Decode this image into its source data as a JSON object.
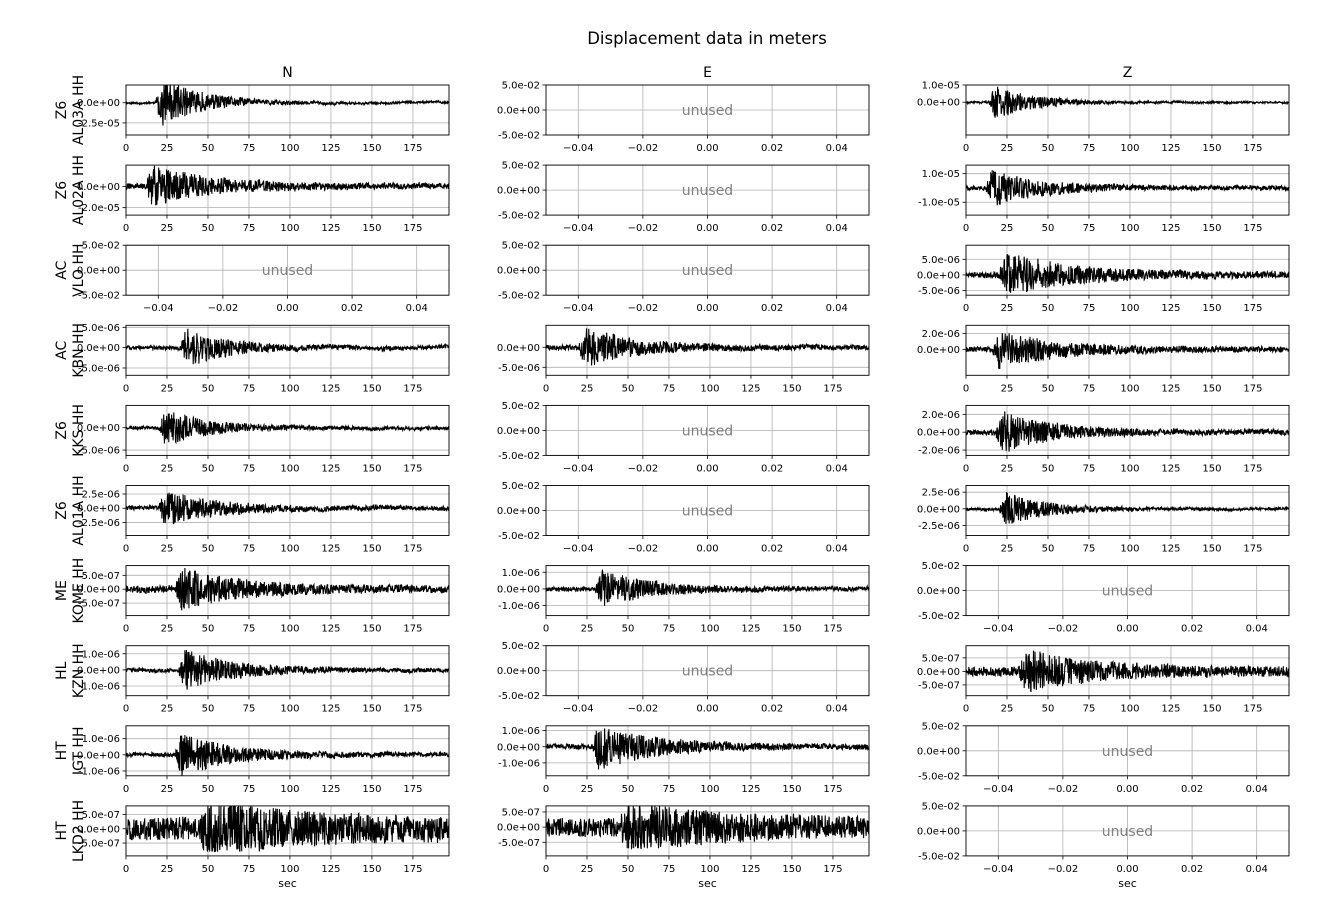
{
  "title": "Displacement data in meters",
  "x_label": "sec",
  "columns": [
    "N",
    "E",
    "Z"
  ],
  "unused_label": "unused",
  "colors": {
    "trace": "#000000",
    "grid": "#b0b0b0",
    "unused_text": "#808080",
    "frame": "#000000"
  },
  "chart_data": {
    "type": "line",
    "title": "Displacement data in meters",
    "xlabel": "sec",
    "grid": true,
    "time_ticks": [
      "0",
      "25",
      "50",
      "75",
      "100",
      "125",
      "150",
      "175"
    ],
    "time_xlim": [
      0,
      197
    ],
    "unused_ticks": [
      "−0.04",
      "−0.02",
      "0.00",
      "0.02",
      "0.04"
    ],
    "unused_yticks": [
      "5.0e-02",
      "0.0e+00",
      "-5.0e-02"
    ],
    "unused_xlim": [
      -0.05,
      0.05
    ],
    "stations": [
      {
        "network": "Z6",
        "station": "AL03A",
        "channel": "HH",
        "label": "Z6\nAL03A HH",
        "label_line1": "Z6",
        "label_line2": "AL03A HH",
        "N": {
          "used": true,
          "ylim": [
            -4e-05,
            2.2e-05
          ],
          "yticks": [
            "0.0e+00",
            "-2.5e-05"
          ],
          "arrival": 18,
          "peak": 3.8e-05,
          "noise": 0.03,
          "decay": 25
        },
        "E": {
          "used": false
        },
        "Z": {
          "used": true,
          "ylim": [
            -1.9e-05,
            1e-05
          ],
          "yticks": [
            "1.0e-05",
            "0.0e+00"
          ],
          "arrival": 14,
          "peak": 1.3e-05,
          "noise": 0.04,
          "decay": 22
        }
      },
      {
        "network": "Z6",
        "station": "AL02A",
        "channel": "HH",
        "label_line1": "Z6",
        "label_line2": "AL02A HH",
        "N": {
          "used": true,
          "ylim": [
            -2.7e-05,
            2e-05
          ],
          "yticks": [
            "0.0e+00",
            "-2.0e-05"
          ],
          "arrival": 12,
          "peak": 2.2e-05,
          "noise": 0.12,
          "decay": 35
        },
        "E": {
          "used": false
        },
        "Z": {
          "used": true,
          "ylim": [
            -1.9e-05,
            1.6e-05
          ],
          "yticks": [
            "1.0e-05",
            "-1.0e-05"
          ],
          "arrival": 12,
          "peak": 1.5e-05,
          "noise": 0.1,
          "decay": 30
        }
      },
      {
        "network": "AC",
        "station": "VLO",
        "channel": "HH",
        "label_line1": "AC",
        "label_line2": "VLO HH",
        "N": {
          "used": false
        },
        "E": {
          "used": false
        },
        "Z": {
          "used": true,
          "ylim": [
            -6.5e-06,
            9.5e-06
          ],
          "yticks": [
            "5.0e-06",
            "0.0e+00",
            "-5.0e-06"
          ],
          "arrival": 20,
          "peak": 8e-06,
          "noise": 0.12,
          "decay": 40
        }
      },
      {
        "network": "AC",
        "station": "KBN",
        "channel": "HH",
        "label_line1": "AC",
        "label_line2": "KBN HH",
        "N": {
          "used": true,
          "ylim": [
            -6.8e-06,
            5.5e-06
          ],
          "yticks": [
            "5.0e-06",
            "0.0e+00",
            "-5.0e-06"
          ],
          "arrival": 33,
          "peak": 6e-06,
          "noise": 0.08,
          "decay": 25
        },
        "E": {
          "used": true,
          "ylim": [
            -7e-06,
            5.5e-06
          ],
          "yticks": [
            "0.0e+00",
            "-5.0e-06"
          ],
          "arrival": 20,
          "peak": 6e-06,
          "noise": 0.1,
          "decay": 30
        },
        "Z": {
          "used": true,
          "ylim": [
            -3.2e-06,
            3e-06
          ],
          "yticks": [
            "2.0e-06",
            "0.0e+00"
          ],
          "arrival": 16,
          "peak": 2.7e-06,
          "noise": 0.12,
          "decay": 35
        }
      },
      {
        "network": "Z6",
        "station": "KKS",
        "channel": "HH",
        "label_line1": "Z6",
        "label_line2": "KKS HH",
        "N": {
          "used": true,
          "ylim": [
            -6.2e-06,
            5e-06
          ],
          "yticks": [
            "0.0e+00",
            "-5.0e-06"
          ],
          "arrival": 20,
          "peak": 5e-06,
          "noise": 0.08,
          "decay": 25
        },
        "E": {
          "used": false
        },
        "Z": {
          "used": true,
          "ylim": [
            -2.6e-06,
            3e-06
          ],
          "yticks": [
            "2.0e-06",
            "0.0e+00",
            "-2.0e-06"
          ],
          "arrival": 18,
          "peak": 2.8e-06,
          "noise": 0.1,
          "decay": 30
        }
      },
      {
        "network": "Z6",
        "station": "AL01A",
        "channel": "HH",
        "label_line1": "Z6",
        "label_line2": "AL01A HH",
        "N": {
          "used": true,
          "ylim": [
            -4.8e-06,
            4e-06
          ],
          "yticks": [
            "2.5e-06",
            "0.0e+00",
            "-2.5e-06"
          ],
          "arrival": 20,
          "peak": 3.8e-06,
          "noise": 0.1,
          "decay": 30
        },
        "E": {
          "used": false
        },
        "Z": {
          "used": true,
          "ylim": [
            -4e-06,
            3.5e-06
          ],
          "yticks": [
            "2.5e-06",
            "0.0e+00",
            "-2.5e-06"
          ],
          "arrival": 20,
          "peak": 3.2e-06,
          "noise": 0.06,
          "decay": 25
        }
      },
      {
        "network": "ME",
        "station": "KOME",
        "channel": "HH",
        "label_line1": "ME",
        "label_line2": "KOME HH",
        "N": {
          "used": true,
          "ylim": [
            -9.5e-07,
            8.5e-07
          ],
          "yticks": [
            "5.0e-07",
            "0.0e+00",
            "-5.0e-07"
          ],
          "arrival": 30,
          "peak": 8.5e-07,
          "noise": 0.15,
          "decay": 35
        },
        "E": {
          "used": true,
          "ylim": [
            -1.6e-06,
            1.4e-06
          ],
          "yticks": [
            "1.0e-06",
            "0.0e+00",
            "-1.0e-06"
          ],
          "arrival": 30,
          "peak": 1.3e-06,
          "noise": 0.1,
          "decay": 30
        },
        "Z": {
          "used": false
        }
      },
      {
        "network": "HL",
        "station": "KZN",
        "channel": "HH",
        "label_line1": "HL",
        "label_line2": "KZN HH",
        "N": {
          "used": true,
          "ylim": [
            -1.6e-06,
            1.5e-06
          ],
          "yticks": [
            "1.0e-06",
            "0.0e+00",
            "-1.0e-06"
          ],
          "arrival": 32,
          "peak": 1.5e-06,
          "noise": 0.08,
          "decay": 30
        },
        "E": {
          "used": false
        },
        "Z": {
          "used": true,
          "ylim": [
            -9e-07,
            9.5e-07
          ],
          "yticks": [
            "5.0e-07",
            "0.0e+00",
            "-5.0e-07"
          ],
          "arrival": 32,
          "peak": 8.5e-07,
          "noise": 0.2,
          "decay": 40
        }
      },
      {
        "network": "HT",
        "station": "IGT",
        "channel": "HH",
        "label_line1": "HT",
        "label_line2": "IGT HH",
        "N": {
          "used": true,
          "ylim": [
            -1.3e-06,
            1.8e-06
          ],
          "yticks": [
            "1.0e-06",
            "0.0e+00",
            "-1.0e-06"
          ],
          "arrival": 30,
          "peak": 1.6e-06,
          "noise": 0.08,
          "decay": 30
        },
        "E": {
          "used": true,
          "ylim": [
            -1.8e-06,
            1.3e-06
          ],
          "yticks": [
            "1.0e-06",
            "0.0e+00",
            "-1.0e-06"
          ],
          "arrival": 28,
          "peak": 1.6e-06,
          "noise": 0.1,
          "decay": 35
        },
        "Z": {
          "used": false
        }
      },
      {
        "network": "HT",
        "station": "LKD2",
        "channel": "HH",
        "label_line1": "HT",
        "label_line2": "LKD2 HH",
        "N": {
          "used": true,
          "ylim": [
            -9.5e-07,
            8e-07
          ],
          "yticks": [
            "5.0e-07",
            "0.0e+00",
            "-5.0e-07"
          ],
          "arrival": 45,
          "peak": 8e-07,
          "noise": 0.5,
          "decay": 60
        },
        "E": {
          "used": true,
          "ylim": [
            -9.5e-07,
            7e-07
          ],
          "yticks": [
            "5.0e-07",
            "0.0e+00",
            "-5.0e-07"
          ],
          "arrival": 45,
          "peak": 7e-07,
          "noise": 0.45,
          "decay": 60
        },
        "Z": {
          "used": false
        }
      }
    ]
  }
}
